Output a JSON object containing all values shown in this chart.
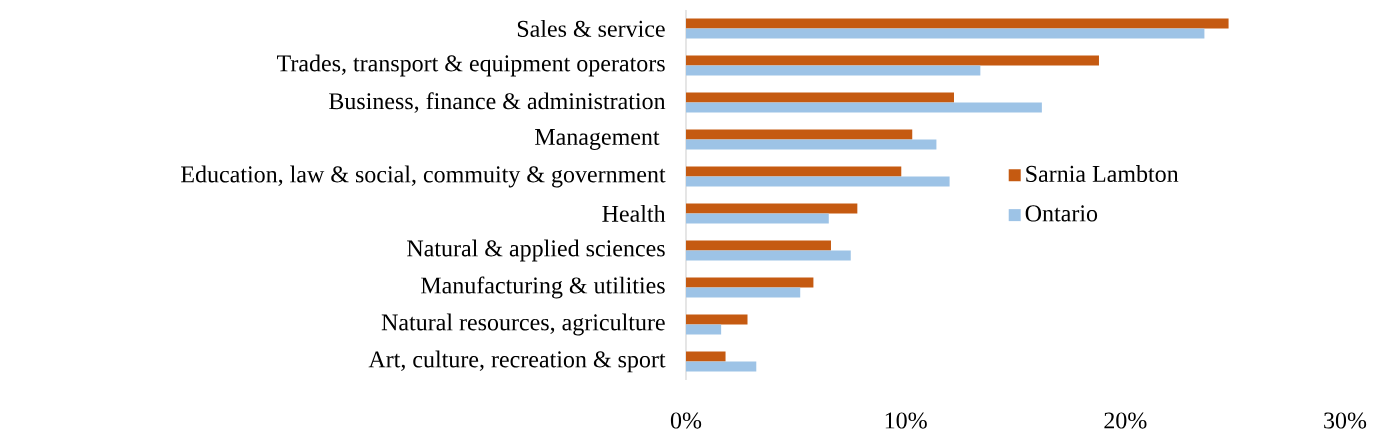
{
  "chart_data": {
    "type": "bar",
    "orientation": "horizontal",
    "categories": [
      "Sales & service",
      "Trades, transport & equipment operators",
      "Business, finance & administration",
      "Management ",
      "Education, law & social, commuity & government",
      "Health",
      "Natural & applied sciences",
      "Manufacturing & utilities",
      "Natural resources, agriculture",
      "Art, culture, recreation & sport"
    ],
    "series": [
      {
        "name": "Sarnia Lambton",
        "color": "#c55a11",
        "values": [
          24.7,
          18.8,
          12.2,
          10.3,
          9.8,
          7.8,
          6.6,
          5.8,
          2.8,
          1.8
        ]
      },
      {
        "name": "Ontario",
        "color": "#9dc3e6",
        "values": [
          23.6,
          13.4,
          16.2,
          11.4,
          12.0,
          6.5,
          7.5,
          5.2,
          1.6,
          3.2
        ]
      }
    ],
    "xlim": [
      0,
      30
    ],
    "xticks": [
      {
        "value": 0,
        "label": "0%"
      },
      {
        "value": 10,
        "label": "10%"
      },
      {
        "value": 20,
        "label": "20%"
      },
      {
        "value": 30,
        "label": "30%"
      }
    ],
    "grid": false,
    "legend": "right"
  }
}
